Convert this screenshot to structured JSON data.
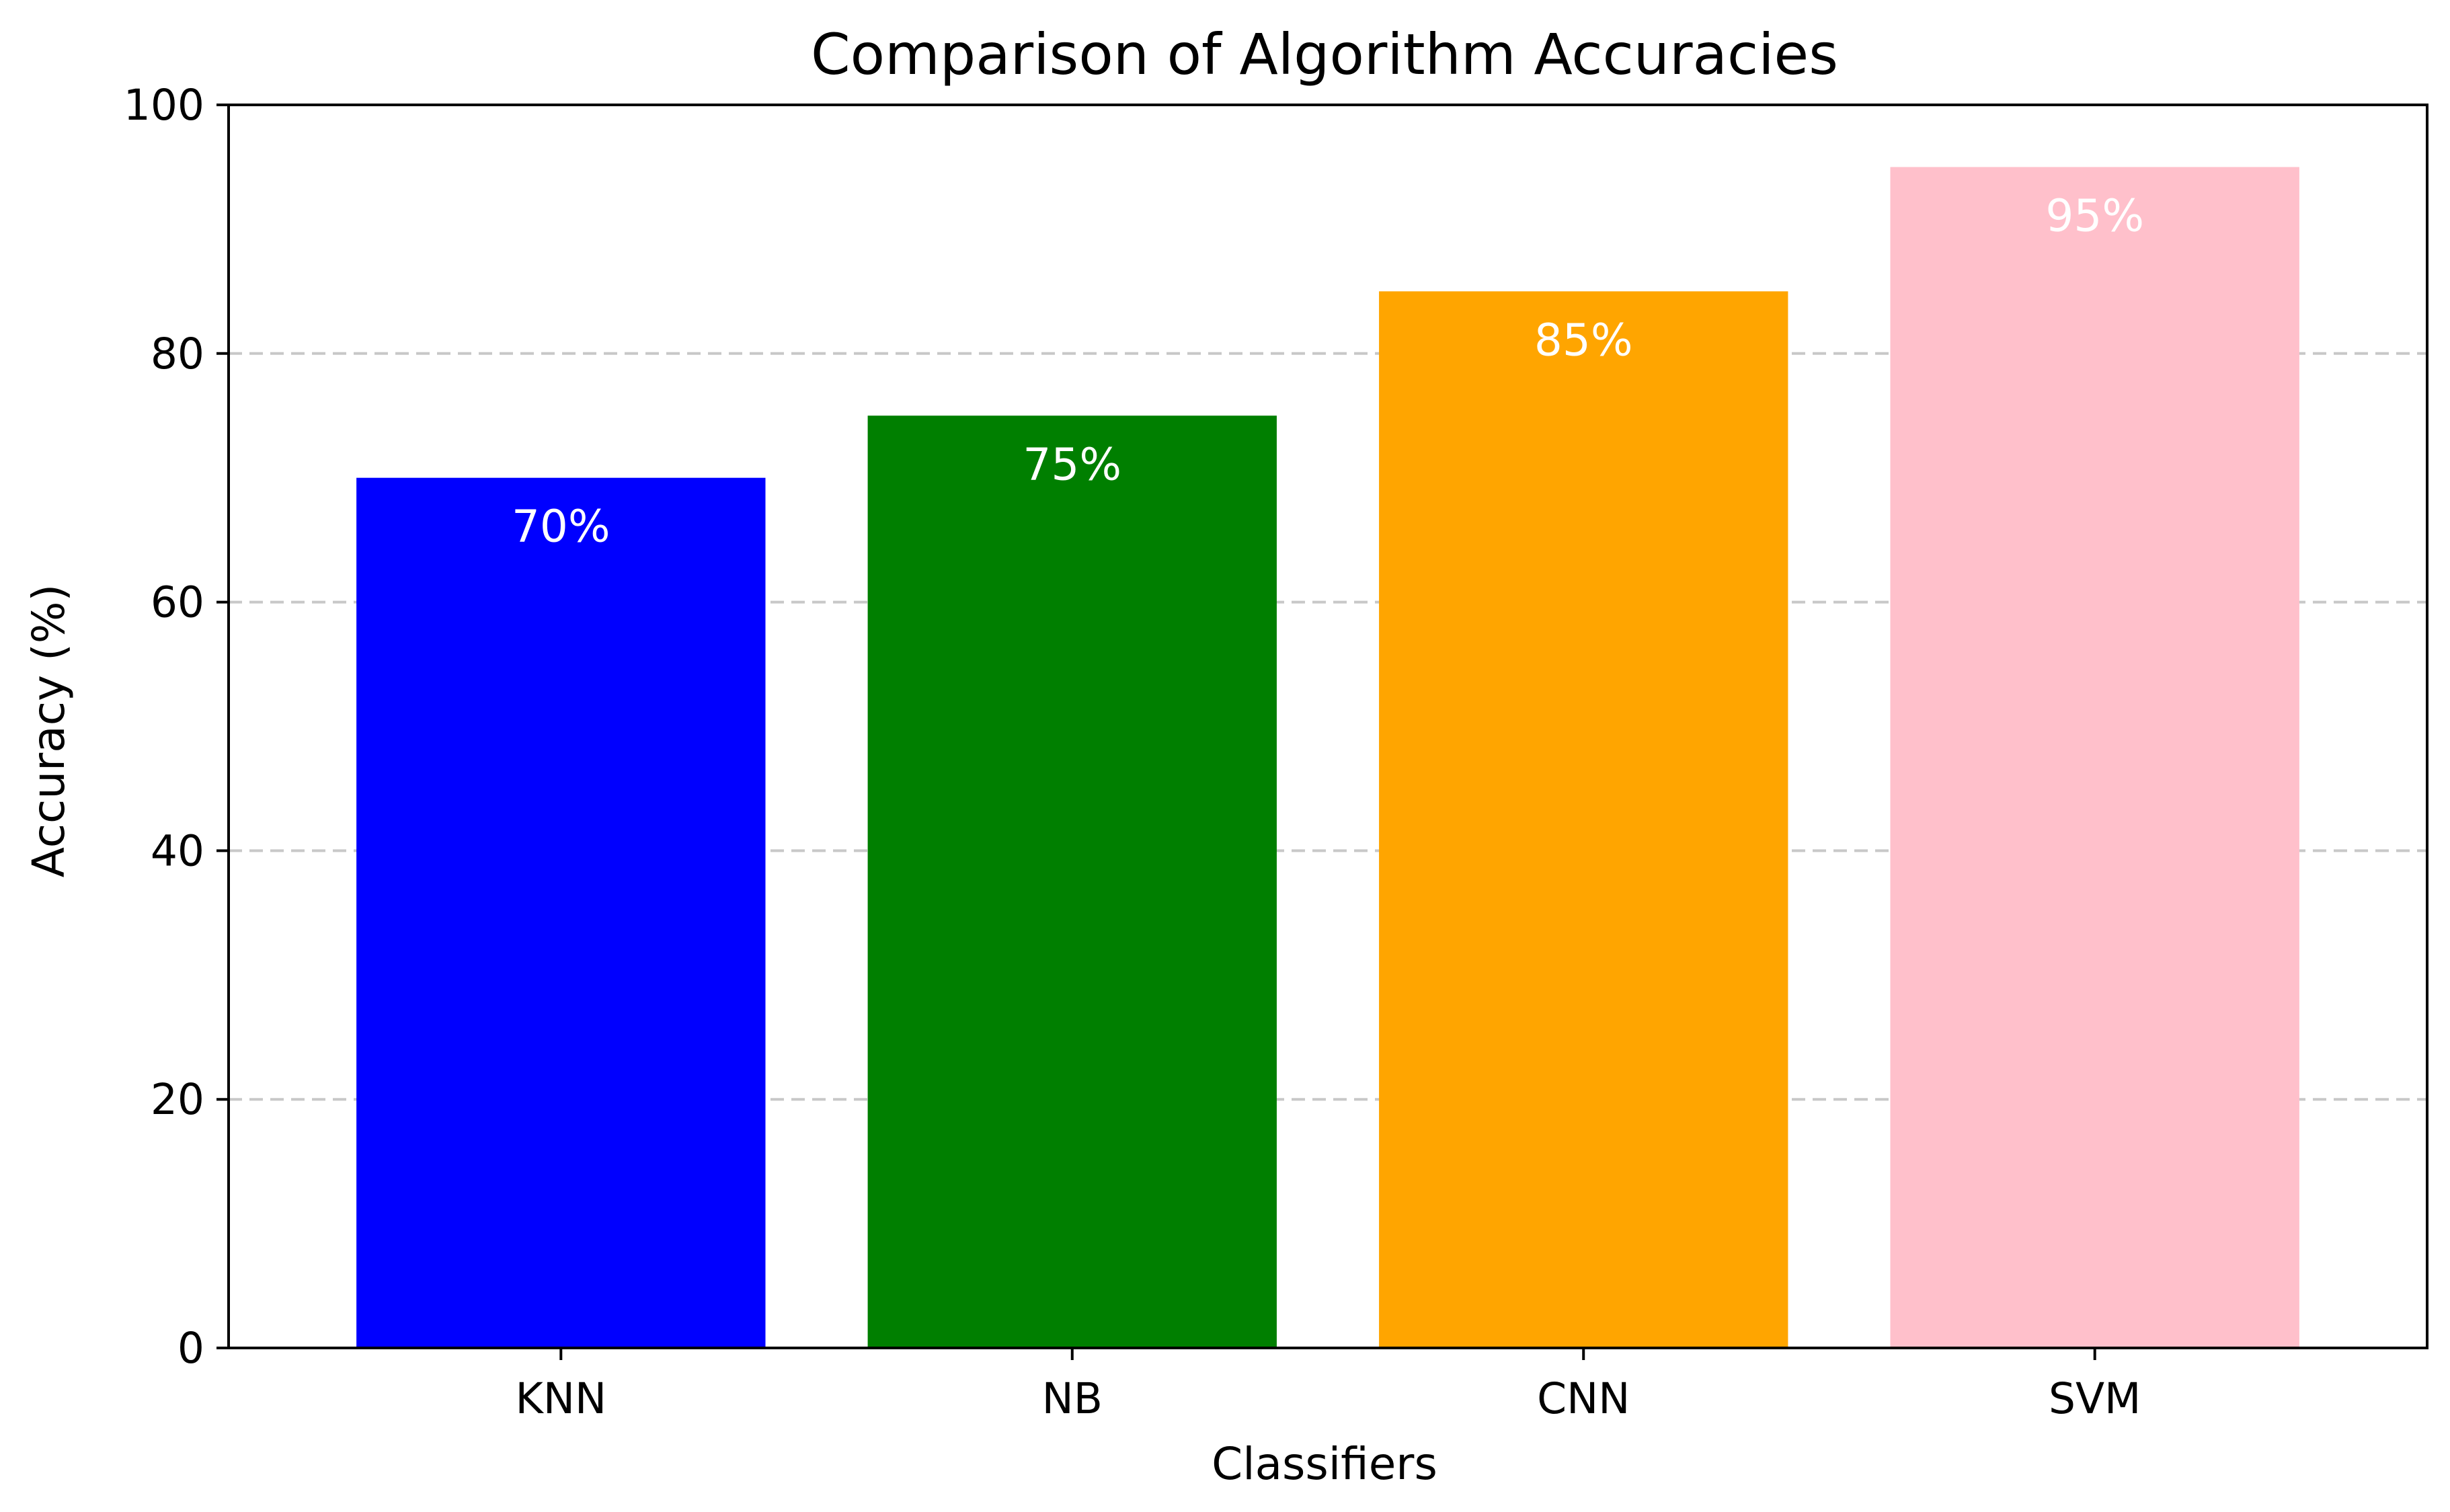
{
  "chart_data": {
    "type": "bar",
    "title": "Comparison of Algorithm Accuracies",
    "xlabel": "Classifiers",
    "ylabel": "Accuracy (%)",
    "categories": [
      "KNN",
      "NB",
      "CNN",
      "SVM"
    ],
    "values": [
      70,
      75,
      85,
      95
    ],
    "value_labels": [
      "70%",
      "75%",
      "85%",
      "95%"
    ],
    "colors": [
      "#0000ff",
      "#007f00",
      "#ffa500",
      "#ffc0cb"
    ],
    "ylim": [
      0,
      100
    ],
    "yticks": [
      0,
      20,
      40,
      60,
      80,
      100
    ],
    "ytick_labels": [
      "0",
      "20",
      "40",
      "60",
      "80",
      "100"
    ],
    "grid": "y-axis dashed",
    "legend": "none"
  }
}
